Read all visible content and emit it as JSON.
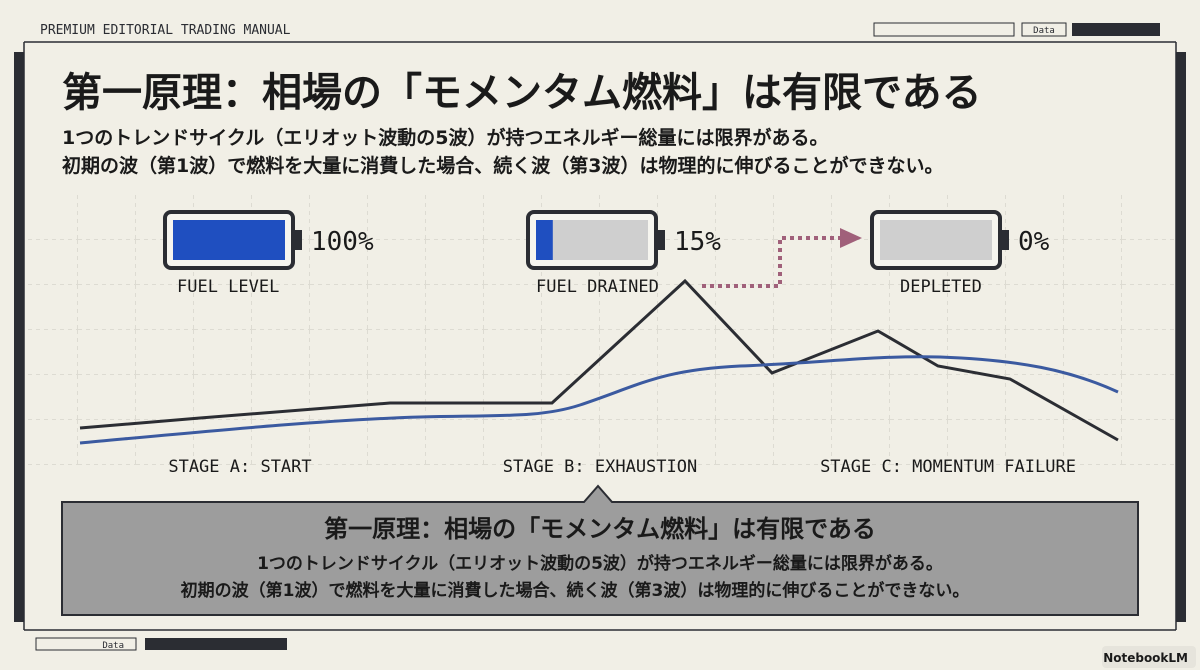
{
  "header": {
    "label": "PREMIUM EDITORIAL TRADING MANUAL",
    "tab_top": "Data",
    "tab_bottom": "Data"
  },
  "title": "第一原理：相場の「モメンタム燃料」は有限である",
  "subtitle_lines": [
    "1つのトレンドサイクル（エリオット波動の5波）が持つエネルギー総量には限界がある。",
    "初期の波（第1波）で燃料を大量に消費した場合、続く波（第3波）は物理的に伸びることができない。"
  ],
  "batteries": [
    {
      "level": 100,
      "level_label": "100%",
      "caption": "FUEL LEVEL"
    },
    {
      "level": 15,
      "level_label": "15%",
      "caption": "FUEL DRAINED"
    },
    {
      "level": 0,
      "level_label": "0%",
      "caption": "DEPLETED"
    }
  ],
  "stages": [
    "STAGE A: START",
    "STAGE B: EXHAUSTION",
    "STAGE C: MOMENTUM FAILURE"
  ],
  "callout": {
    "title": "第一原理：相場の「モメンタム燃料」は有限である",
    "lines": [
      "1つのトレンドサイクル（エリオット波動の5波）が持つエネルギー総量には限界がある。",
      "初期の波（第1波）で燃料を大量に消費した場合、続く波（第3波）は物理的に伸びることができない。"
    ]
  },
  "watermark": "NotebookLM"
}
